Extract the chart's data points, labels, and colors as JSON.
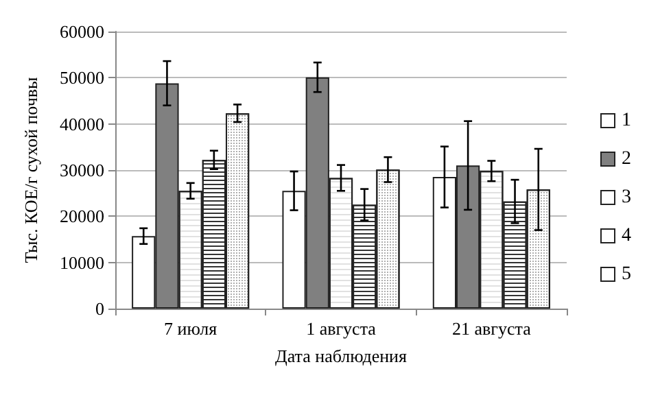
{
  "chart_data": {
    "type": "bar",
    "xlabel": "Дата наблюдения",
    "ylabel": "Тыс. КОЕ/г сухой почвы",
    "categories": [
      "7 июля",
      "1 августа",
      "21 августа"
    ],
    "series": [
      {
        "name": "1",
        "color": "#ffffff",
        "values": [
          15700,
          25500,
          28500
        ],
        "errors": [
          1700,
          4200,
          6600
        ]
      },
      {
        "name": "2",
        "color": "#808080",
        "values": [
          48800,
          50100,
          31000
        ],
        "errors": [
          4800,
          3200,
          9600
        ]
      },
      {
        "name": "3",
        "color": "#ffffff",
        "values": [
          25500,
          28300,
          29800
        ],
        "errors": [
          1700,
          2800,
          2200
        ]
      },
      {
        "name": "4",
        "color": "#ffffff",
        "values": [
          32200,
          22500,
          23200
        ],
        "errors": [
          2000,
          3400,
          4700
        ]
      },
      {
        "name": "5",
        "color": "#ffffff",
        "values": [
          42300,
          30100,
          25800
        ],
        "errors": [
          1900,
          2700,
          8800
        ]
      }
    ],
    "ylim": [
      0,
      60000
    ],
    "yticks": [
      0,
      10000,
      20000,
      30000,
      40000,
      50000,
      60000
    ],
    "grid": "y",
    "legend": "right"
  }
}
